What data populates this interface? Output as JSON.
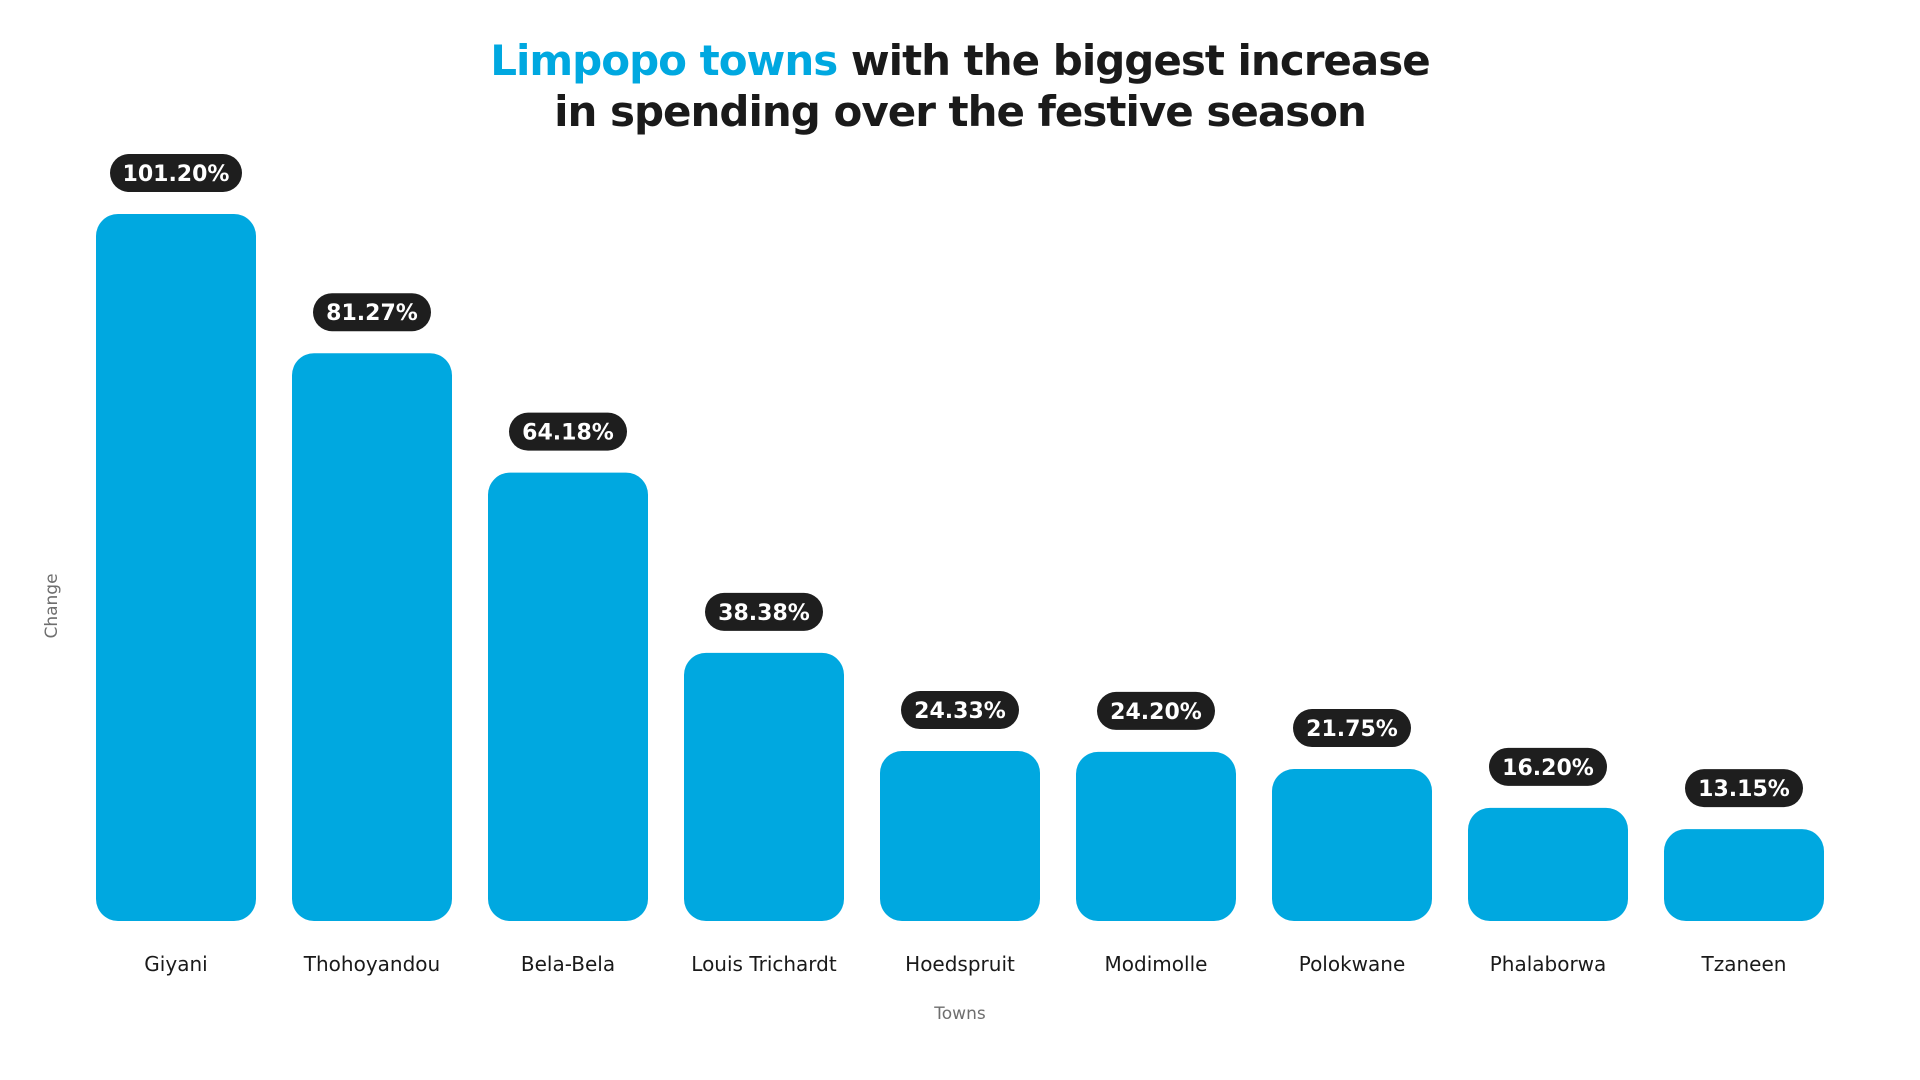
{
  "chart_data": {
    "type": "bar",
    "title_highlight": "Limpopo towns",
    "title_rest_line1": " with the biggest increase",
    "title_line2": "in spending over the festive season",
    "xlabel": "Towns",
    "ylabel": "Change",
    "categories": [
      "Giyani",
      "Thohoyandou",
      "Bela-Bela",
      "Louis Trichardt",
      "Hoedspruit",
      "Modimolle",
      "Polokwane",
      "Phalaborwa",
      "Tzaneen"
    ],
    "values": [
      101.2,
      81.27,
      64.18,
      38.38,
      24.33,
      24.2,
      21.75,
      16.2,
      13.15
    ],
    "value_labels": [
      "101.20%",
      "81.27%",
      "64.18%",
      "38.38%",
      "24.33%",
      "24.20%",
      "21.75%",
      "16.20%",
      "13.15%"
    ],
    "ylim": [
      0,
      101.2
    ],
    "grid": false,
    "legend": "none",
    "colors": {
      "bar": "#00a8e0",
      "label_bg": "#1e1e1e",
      "label_text": "#ffffff",
      "highlight": "#00a8e0",
      "text": "#1a1a1a",
      "axis_text": "#6e6e6e"
    }
  }
}
